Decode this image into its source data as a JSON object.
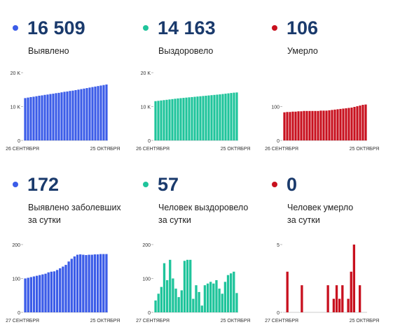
{
  "panels": [
    {
      "id": "p1",
      "value": "16 509",
      "label_lines": [
        "Выявлено"
      ],
      "color": "#3b5ce8",
      "ylim": [
        0,
        20000
      ],
      "yticks": [
        {
          "v": 0,
          "t": "0"
        },
        {
          "v": 10000,
          "t": "10 K"
        },
        {
          "v": 20000,
          "t": "20 K"
        }
      ],
      "xstart": "26 СЕНТЯБРЯ",
      "xend": "25 ОКТЯБРЯ"
    },
    {
      "id": "p2",
      "value": "14 163",
      "label_lines": [
        "Выздоровело"
      ],
      "color": "#1fc49b",
      "ylim": [
        0,
        20000
      ],
      "yticks": [
        {
          "v": 0,
          "t": "0"
        },
        {
          "v": 10000,
          "t": "10 K"
        },
        {
          "v": 20000,
          "t": "20 K"
        }
      ],
      "xstart": "26 СЕНТЯБРЯ",
      "xend": "25 ОКТЯБРЯ"
    },
    {
      "id": "p3",
      "value": "106",
      "label_lines": [
        "Умерло"
      ],
      "color": "#c8101e",
      "ylim": [
        0,
        200
      ],
      "yticks": [
        {
          "v": 0,
          "t": "0"
        },
        {
          "v": 100,
          "t": "100"
        }
      ],
      "xstart": "26 СЕНТЯБРЯ",
      "xend": "25 ОКТЯБРЯ"
    },
    {
      "id": "p4",
      "value": "172",
      "label_lines": [
        "Выявлено заболевших",
        "за сутки"
      ],
      "color": "#3b5ce8",
      "ylim": [
        0,
        200
      ],
      "yticks": [
        {
          "v": 0,
          "t": "0"
        },
        {
          "v": 100,
          "t": "100"
        },
        {
          "v": 200,
          "t": "200"
        }
      ],
      "xstart": "27 СЕНТЯБРЯ",
      "xend": "25 ОКТЯБРЯ"
    },
    {
      "id": "p5",
      "value": "57",
      "label_lines": [
        "Человек выздоровело",
        "за сутки"
      ],
      "color": "#1fc49b",
      "ylim": [
        0,
        200
      ],
      "yticks": [
        {
          "v": 0,
          "t": "0"
        },
        {
          "v": 100,
          "t": "100"
        },
        {
          "v": 200,
          "t": "200"
        }
      ],
      "xstart": "27 СЕНТЯБРЯ",
      "xend": "25 ОКТЯБРЯ"
    },
    {
      "id": "p6",
      "value": "0",
      "label_lines": [
        "Человек умерло",
        "за сутки"
      ],
      "color": "#c8101e",
      "ylim": [
        0,
        5
      ],
      "yticks": [
        {
          "v": 0,
          "t": "0"
        },
        {
          "v": 5,
          "t": "5"
        }
      ],
      "xstart": "27 СЕНТЯБРЯ",
      "xend": "25 ОКТЯБРЯ"
    }
  ],
  "chart_data": [
    {
      "type": "bar",
      "title": "Выявлено",
      "x_range": [
        "26 СЕНТЯБРЯ",
        "25 ОКТЯБРЯ"
      ],
      "ylim": [
        0,
        20000
      ],
      "values": [
        12500,
        12650,
        12800,
        12900,
        13050,
        13200,
        13300,
        13450,
        13550,
        13700,
        13800,
        13950,
        14050,
        14200,
        14350,
        14450,
        14600,
        14700,
        14850,
        15000,
        15150,
        15300,
        15450,
        15600,
        15750,
        15900,
        16050,
        16200,
        16350,
        16509
      ]
    },
    {
      "type": "bar",
      "title": "Выздоровело",
      "x_range": [
        "26 СЕНТЯБРЯ",
        "25 ОКТЯБРЯ"
      ],
      "ylim": [
        0,
        20000
      ],
      "values": [
        11600,
        11700,
        11800,
        11900,
        12000,
        12100,
        12200,
        12300,
        12400,
        12480,
        12560,
        12640,
        12720,
        12800,
        12880,
        12960,
        13040,
        13120,
        13200,
        13280,
        13360,
        13440,
        13520,
        13600,
        13700,
        13800,
        13900,
        14000,
        14100,
        14163
      ]
    },
    {
      "type": "bar",
      "title": "Умерло",
      "x_range": [
        "26 СЕНТЯБРЯ",
        "25 ОКТЯБРЯ"
      ],
      "ylim": [
        0,
        200
      ],
      "values": [
        83,
        84,
        84,
        85,
        85,
        86,
        86,
        87,
        87,
        87,
        87,
        87,
        87,
        88,
        88,
        88,
        89,
        90,
        91,
        92,
        93,
        94,
        95,
        96,
        97,
        99,
        101,
        103,
        105,
        106
      ]
    },
    {
      "type": "bar",
      "title": "Выявлено заболевших за сутки",
      "x_range": [
        "27 СЕНТЯБРЯ",
        "25 ОКТЯБРЯ"
      ],
      "ylim": [
        0,
        200
      ],
      "values": [
        100,
        102,
        104,
        106,
        108,
        110,
        112,
        114,
        118,
        120,
        121,
        125,
        130,
        135,
        140,
        150,
        158,
        165,
        170,
        171,
        170,
        169,
        170,
        170,
        171,
        171,
        172,
        172,
        172
      ]
    },
    {
      "type": "bar",
      "title": "Человек выздоровело за сутки",
      "x_range": [
        "27 СЕНТЯБРЯ",
        "25 ОКТЯБРЯ"
      ],
      "ylim": [
        0,
        200
      ],
      "values": [
        35,
        55,
        75,
        145,
        95,
        155,
        100,
        70,
        45,
        65,
        152,
        155,
        155,
        40,
        80,
        60,
        20,
        80,
        85,
        90,
        85,
        95,
        70,
        55,
        90,
        110,
        115,
        120,
        57
      ]
    },
    {
      "type": "bar",
      "title": "Человек умерло за сутки",
      "x_range": [
        "27 СЕНТЯБРЯ",
        "25 ОКТЯБРЯ"
      ],
      "ylim": [
        0,
        5
      ],
      "values": [
        0,
        3,
        0,
        0,
        0,
        0,
        2,
        0,
        0,
        0,
        0,
        0,
        0,
        0,
        0,
        2,
        0,
        1,
        2,
        1,
        2,
        0,
        1,
        3,
        5,
        0,
        2,
        0,
        0
      ]
    }
  ]
}
